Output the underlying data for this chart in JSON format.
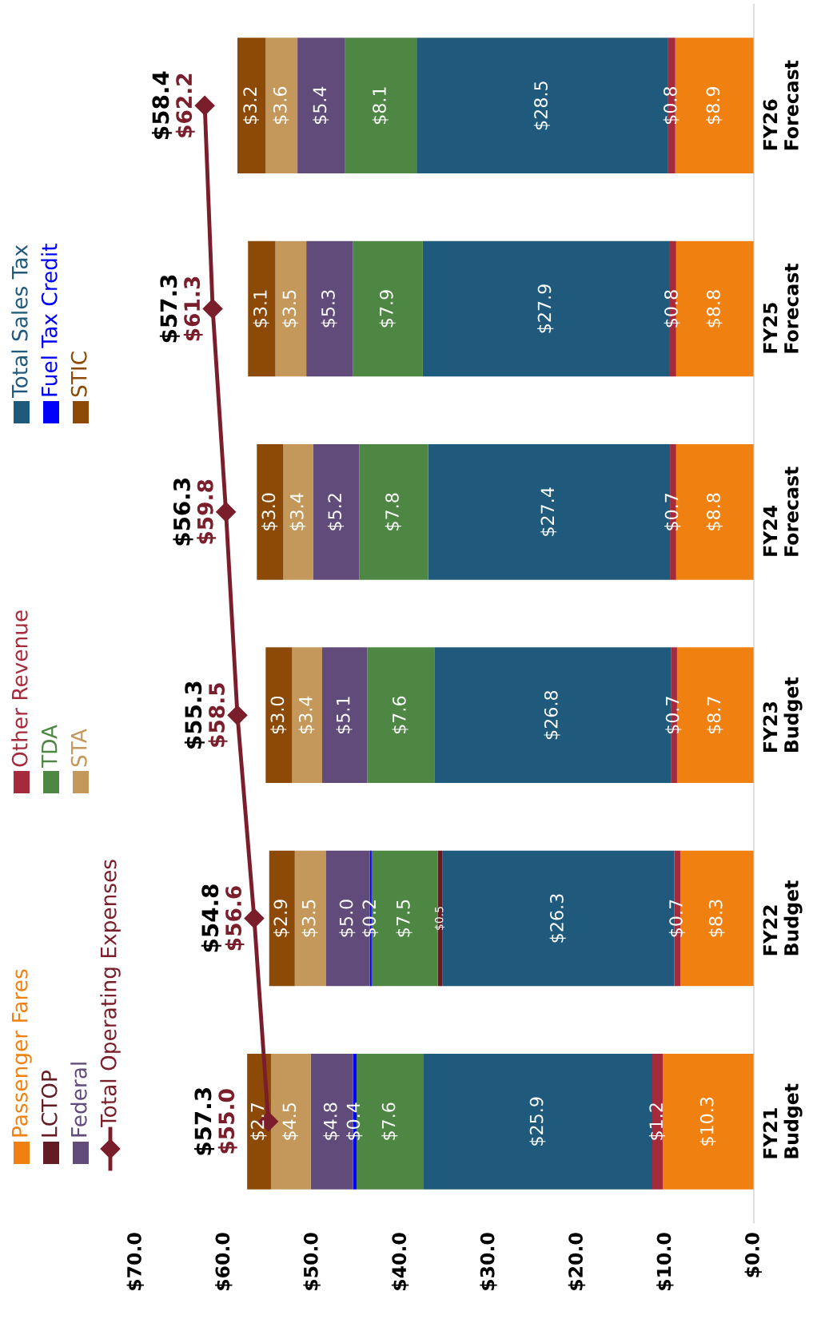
{
  "chart_data": {
    "type": "bar",
    "stacked": true,
    "orientation": "horizontal",
    "categories": [
      "FY26\nForecast",
      "FY25\nForecast",
      "FY24\nForecast",
      "FY23\nBudget",
      "FY22\nBudget",
      "FY21\nBudget"
    ],
    "xlim": [
      70,
      0
    ],
    "xticks": [
      {
        "value": 70,
        "label": "$70.0"
      },
      {
        "value": 60,
        "label": "$60.0"
      },
      {
        "value": 50,
        "label": "$50.0"
      },
      {
        "value": 40,
        "label": "$40.0"
      },
      {
        "value": 30,
        "label": "$30.0"
      },
      {
        "value": 20,
        "label": "$20.0"
      },
      {
        "value": 10,
        "label": "$10.0"
      },
      {
        "value": 0,
        "label": "$0.0"
      }
    ],
    "legend": "left",
    "grid": false,
    "series": [
      {
        "name": "Passenger Fares",
        "color": "#f08010",
        "values": [
          8.9,
          8.8,
          8.8,
          8.7,
          8.3,
          10.3
        ],
        "value_labels": [
          "$8.9",
          "$8.8",
          "$8.8",
          "$8.7",
          "$8.3",
          "$10.3"
        ]
      },
      {
        "name": "Other Revenue",
        "color": "#a52a3c",
        "values": [
          0.8,
          0.8,
          0.7,
          0.7,
          0.7,
          1.2
        ],
        "value_labels": [
          "$0.8",
          "$0.8",
          "$0.7",
          "$0.7",
          "$0.7",
          "$1.2"
        ]
      },
      {
        "name": "Total Sales Tax",
        "color": "#1f5a7d",
        "values": [
          28.5,
          27.9,
          27.4,
          26.8,
          26.3,
          25.9
        ],
        "value_labels": [
          "$28.5",
          "$27.9",
          "$27.4",
          "$26.8",
          "$26.3",
          "$25.9"
        ]
      },
      {
        "name": "LCTOP",
        "color": "#641c24",
        "values": [
          null,
          null,
          null,
          null,
          0.5,
          null
        ],
        "value_labels": [
          null,
          null,
          null,
          null,
          "$0.5",
          null
        ]
      },
      {
        "name": "TDA",
        "color": "#4e8744",
        "values": [
          8.1,
          7.9,
          7.8,
          7.6,
          7.5,
          7.6
        ],
        "value_labels": [
          "$8.1",
          "$7.9",
          "$7.8",
          "$7.6",
          "$7.5",
          "$7.6"
        ]
      },
      {
        "name": "Fuel Tax Credit",
        "color": "#0000ff",
        "values": [
          null,
          null,
          null,
          null,
          0.2,
          0.4
        ],
        "value_labels": [
          null,
          null,
          null,
          null,
          "$0.2",
          "$0.4"
        ]
      },
      {
        "name": "Federal",
        "color": "#614b7b",
        "values": [
          5.4,
          5.3,
          5.2,
          5.1,
          5.0,
          4.8
        ],
        "value_labels": [
          "$5.4",
          "$5.3",
          "$5.2",
          "$5.1",
          "$5.0",
          "$4.8"
        ]
      },
      {
        "name": "STA",
        "color": "#c4985a",
        "values": [
          3.6,
          3.5,
          3.4,
          3.4,
          3.5,
          4.5
        ],
        "value_labels": [
          "$3.6",
          "$3.5",
          "$3.4",
          "$3.4",
          "$3.5",
          "$4.5"
        ]
      },
      {
        "name": "STIC",
        "color": "#8c4a06",
        "values": [
          3.2,
          3.1,
          3.0,
          3.0,
          2.9,
          2.7
        ],
        "value_labels": [
          "$3.2",
          "$3.1",
          "$3.0",
          "$3.0",
          "$2.9",
          "$2.7"
        ]
      },
      {
        "name": "Total Operating Expenses",
        "type": "line",
        "color": "#7b1e2b",
        "marker": "diamond",
        "values": [
          62.2,
          61.3,
          59.8,
          58.5,
          56.6,
          55.0
        ],
        "value_labels": [
          "$62.2",
          "$61.3",
          "$59.8",
          "$58.5",
          "$56.6",
          "$55.0"
        ]
      }
    ],
    "totals": [
      "$58.4",
      "$57.3",
      "$56.3",
      "$55.3",
      "$54.8",
      "$57.3"
    ]
  }
}
